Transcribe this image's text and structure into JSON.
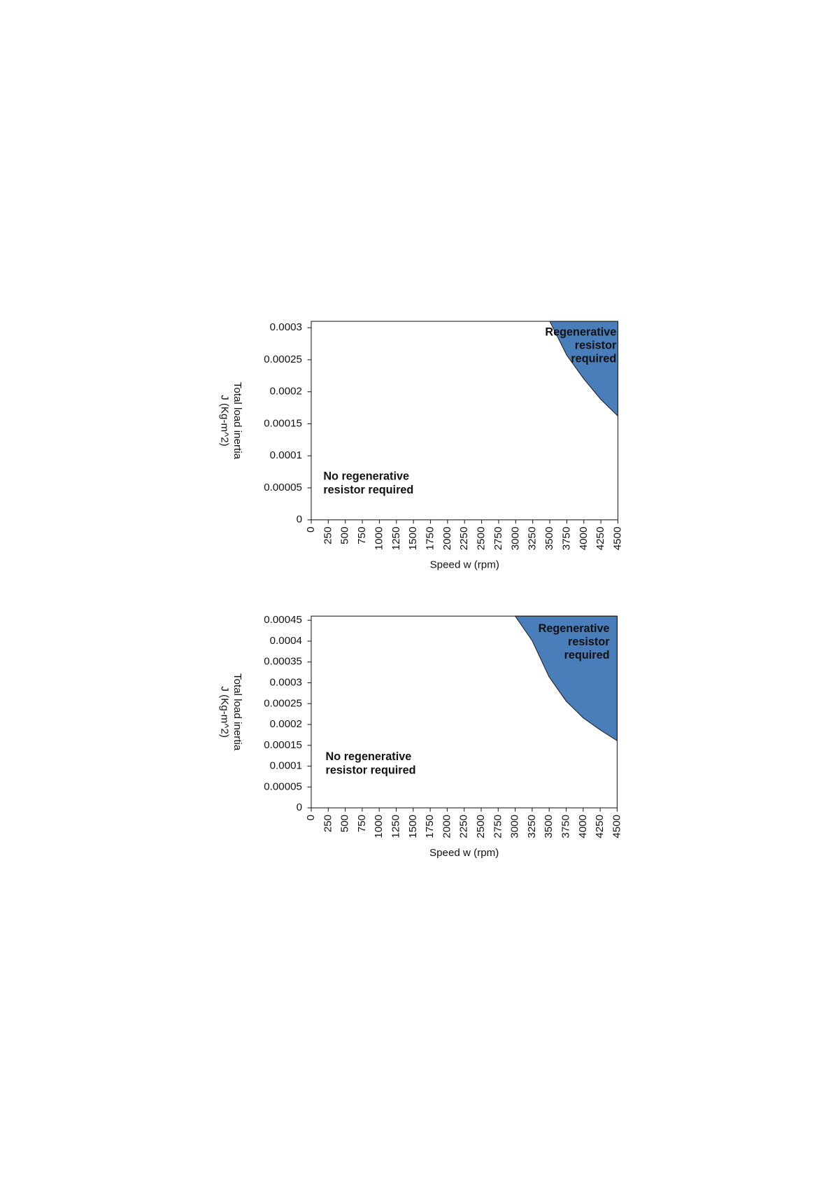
{
  "chart_data": [
    {
      "type": "area",
      "y_label": [
        "Total load inertia",
        "J (Kg-m^2)"
      ],
      "x_label": "Speed w (rpm)",
      "x": [
        3500,
        3750,
        4000,
        4250,
        4500
      ],
      "series": [
        {
          "color": "#4a7ebb",
          "values": [
            0.00031,
            0.000257,
            0.00022,
            0.000188,
            0.000162
          ]
        }
      ],
      "fill_to": "top",
      "xlim": [
        0,
        4500
      ],
      "xticks": [
        0,
        250,
        500,
        750,
        1000,
        1250,
        1500,
        1750,
        2000,
        2250,
        2500,
        2750,
        3000,
        3250,
        3500,
        3750,
        4000,
        4250,
        4500
      ],
      "ylim": [
        0,
        0.00031
      ],
      "yticks": [
        0,
        5e-05,
        0.0001,
        0.00015,
        0.0002,
        0.00025,
        0.0003
      ],
      "annotations": [
        {
          "lines": [
            "Regenerative",
            "resistor",
            "required"
          ],
          "corner": "upper right"
        },
        {
          "lines": [
            "No regenerative",
            "resistor required"
          ],
          "corner": "lower left"
        }
      ]
    },
    {
      "type": "area",
      "y_label": [
        "Total load inertia",
        "J (Kg-m^2)"
      ],
      "x_label": "Speed w  (rpm)",
      "x": [
        3000,
        3250,
        3500,
        3750,
        4000,
        4250,
        4500
      ],
      "series": [
        {
          "color": "#4a7ebb",
          "values": [
            0.00046,
            0.000401,
            0.000314,
            0.000256,
            0.000216,
            0.000187,
            0.000161
          ]
        }
      ],
      "fill_to": "top",
      "xlim": [
        0,
        4500
      ],
      "xticks": [
        0,
        250,
        500,
        750,
        1000,
        1250,
        1500,
        1750,
        2000,
        2250,
        2500,
        2750,
        3000,
        3250,
        3500,
        3750,
        4000,
        4250,
        4500
      ],
      "ylim": [
        0,
        0.00046
      ],
      "yticks": [
        0,
        5e-05,
        0.0001,
        0.00015,
        0.0002,
        0.00025,
        0.0003,
        0.00035,
        0.0004,
        0.00045
      ],
      "annotations": [
        {
          "lines": [
            "Regenerative",
            "resistor",
            "required"
          ],
          "corner": "upper right"
        },
        {
          "lines": [
            "No regenerative",
            "resistor required"
          ],
          "corner": "lower left"
        }
      ]
    }
  ]
}
